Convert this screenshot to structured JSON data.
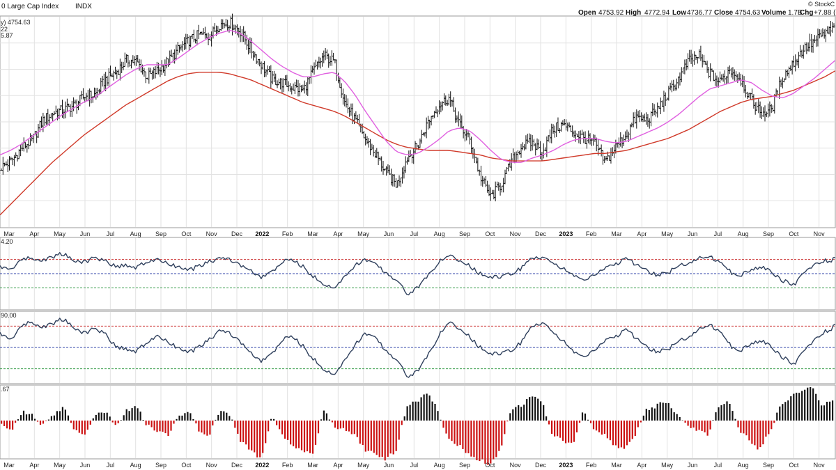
{
  "header": {
    "title": "0 Large Cap Index",
    "exchange": "INDX",
    "brand": "© StockC",
    "quote": [
      {
        "label": "Open",
        "value": "4753.92"
      },
      {
        "label": "High",
        "value": "4772.94"
      },
      {
        "label": "Low",
        "value": "4736.77"
      },
      {
        "label": "Close",
        "value": "4754.63"
      },
      {
        "label": "Volume",
        "value": "1.7B"
      },
      {
        "label": "Chg",
        "value": "+7.88 (+"
      }
    ]
  },
  "price_legend": {
    "main": "y) 4754.63",
    "ma1": "22",
    "ma2": "5.87",
    "ma1_color": "#e040e0",
    "ma2_color": "#cc2222"
  },
  "panel_labels": {
    "osc1": "4.20",
    "osc2": "90.00",
    "hist": ".67"
  },
  "colors": {
    "bars": "#111111",
    "ma_fast": "#e060e0",
    "ma_slow": "#d03a2a",
    "osc_line": "#2e3f5c",
    "upper_ref": "#cc3333",
    "mid_ref": "#3344aa",
    "lower_ref": "#339944",
    "hist_pos": "#111111",
    "hist_neg": "#cc1111",
    "grid": "#e2e2e2"
  },
  "chart_data": {
    "type": "line",
    "x_axis_labels": [
      "Mar",
      "Apr",
      "May",
      "Jun",
      "Jul",
      "Aug",
      "Sep",
      "Oct",
      "Nov",
      "Dec",
      "2022",
      "Feb",
      "Mar",
      "Apr",
      "May",
      "Jun",
      "Jul",
      "Aug",
      "Sep",
      "Oct",
      "Nov",
      "Dec",
      "2023",
      "Feb",
      "Mar",
      "Apr",
      "May",
      "Jun",
      "Jul",
      "Aug",
      "Sep",
      "Oct",
      "Nov"
    ],
    "bold_labels": [
      "2022",
      "2023"
    ],
    "price_series": [
      3820,
      3860,
      3950,
      4000,
      4130,
      4180,
      4200,
      4230,
      4290,
      4300,
      4400,
      4450,
      4530,
      4520,
      4420,
      4460,
      4520,
      4600,
      4660,
      4700,
      4690,
      4770,
      4780,
      4720,
      4600,
      4500,
      4400,
      4380,
      4350,
      4330,
      4460,
      4560,
      4520,
      4250,
      4130,
      4000,
      3900,
      3780,
      3700,
      3880,
      3960,
      4120,
      4230,
      4280,
      4100,
      4000,
      3760,
      3620,
      3700,
      3850,
      3960,
      3980,
      3920,
      4070,
      4100,
      4050,
      4010,
      3980,
      3850,
      3950,
      4030,
      4150,
      4130,
      4200,
      4300,
      4400,
      4520,
      4560,
      4450,
      4380,
      4470,
      4410,
      4270,
      4180,
      4200,
      4410,
      4500,
      4600,
      4650,
      4700,
      4740
    ],
    "ma_fast_series": [
      3900,
      3930,
      3970,
      4020,
      4070,
      4120,
      4170,
      4210,
      4250,
      4280,
      4330,
      4380,
      4430,
      4470,
      4500,
      4500,
      4500,
      4540,
      4590,
      4640,
      4680,
      4710,
      4730,
      4710,
      4660,
      4600,
      4540,
      4490,
      4450,
      4420,
      4420,
      4440,
      4450,
      4390,
      4300,
      4190,
      4090,
      3990,
      3920,
      3900,
      3910,
      3950,
      4000,
      4060,
      4080,
      4060,
      4000,
      3930,
      3870,
      3850,
      3850,
      3880,
      3900,
      3930,
      3970,
      4000,
      4010,
      4010,
      3990,
      3980,
      3990,
      4020,
      4050,
      4080,
      4120,
      4170,
      4230,
      4290,
      4340,
      4360,
      4380,
      4400,
      4380,
      4330,
      4290,
      4280,
      4310,
      4360,
      4410,
      4470,
      4530
    ],
    "ma_slow_series": [
      3500,
      3570,
      3640,
      3710,
      3780,
      3850,
      3910,
      3970,
      4030,
      4080,
      4130,
      4180,
      4230,
      4270,
      4310,
      4350,
      4390,
      4420,
      4440,
      4450,
      4450,
      4450,
      4440,
      4420,
      4400,
      4370,
      4340,
      4310,
      4280,
      4250,
      4230,
      4210,
      4190,
      4160,
      4120,
      4080,
      4040,
      4000,
      3970,
      3950,
      3940,
      3930,
      3930,
      3930,
      3920,
      3910,
      3900,
      3880,
      3870,
      3860,
      3860,
      3860,
      3860,
      3870,
      3880,
      3890,
      3900,
      3910,
      3910,
      3920,
      3930,
      3950,
      3970,
      3990,
      4010,
      4040,
      4070,
      4110,
      4150,
      4190,
      4220,
      4250,
      4270,
      4280,
      4290,
      4310,
      4330,
      4360,
      4390,
      4420,
      4460
    ],
    "osc1": {
      "label": "4.20",
      "ref_levels": {
        "upper": 70,
        "mid": 50,
        "lower": 30
      },
      "series": [
        60,
        55,
        70,
        72,
        68,
        74,
        78,
        70,
        66,
        72,
        70,
        60,
        62,
        58,
        66,
        70,
        64,
        60,
        54,
        60,
        66,
        72,
        70,
        62,
        54,
        44,
        52,
        66,
        70,
        60,
        46,
        36,
        30,
        44,
        62,
        70,
        62,
        52,
        40,
        22,
        30,
        48,
        66,
        74,
        70,
        60,
        50,
        44,
        46,
        50,
        58,
        72,
        74,
        66,
        56,
        48,
        40,
        48,
        58,
        64,
        70,
        62,
        54,
        48,
        52,
        60,
        66,
        72,
        74,
        66,
        52,
        48,
        56,
        60,
        50,
        40,
        34,
        50,
        62,
        68,
        70
      ]
    },
    "osc2": {
      "label": "90.00",
      "ref_levels": {
        "upper": 80,
        "mid": 50,
        "lower": 20
      },
      "series": [
        70,
        60,
        80,
        86,
        78,
        84,
        90,
        80,
        70,
        76,
        72,
        52,
        48,
        44,
        56,
        66,
        58,
        50,
        42,
        50,
        60,
        74,
        70,
        58,
        42,
        30,
        40,
        60,
        66,
        52,
        34,
        20,
        12,
        30,
        54,
        70,
        62,
        46,
        32,
        10,
        16,
        40,
        66,
        84,
        78,
        64,
        50,
        40,
        42,
        46,
        58,
        80,
        86,
        72,
        58,
        44,
        36,
        46,
        60,
        66,
        74,
        62,
        50,
        44,
        48,
        58,
        66,
        76,
        82,
        72,
        52,
        46,
        56,
        60,
        48,
        36,
        26,
        44,
        60,
        72,
        80
      ]
    },
    "histogram": {
      "label": ".67",
      "series": [
        -1,
        -2,
        2,
        1,
        -1,
        1,
        3,
        -2,
        -3,
        1,
        2,
        -1,
        2,
        3,
        -1,
        -2,
        -3,
        1,
        2,
        -2,
        -3,
        2,
        1,
        -4,
        -6,
        -8,
        1,
        -3,
        -5,
        -6,
        -7,
        2,
        -1,
        -2,
        -3,
        -6,
        -7,
        -8,
        -6,
        3,
        4,
        6,
        2,
        -4,
        -5,
        -7,
        -8,
        -9,
        -6,
        2,
        3,
        5,
        4,
        -3,
        -4,
        -5,
        2,
        -2,
        -3,
        -5,
        -6,
        -3,
        2,
        3,
        4,
        1,
        -1,
        -2,
        -3,
        3,
        4,
        -2,
        -4,
        -6,
        -2,
        3,
        5,
        6,
        7,
        3,
        4
      ]
    }
  }
}
